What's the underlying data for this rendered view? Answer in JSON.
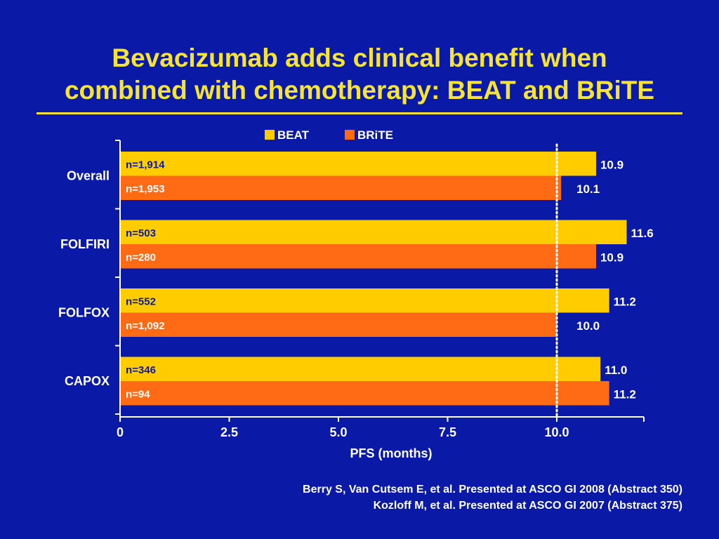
{
  "slide": {
    "title_line1": "Bevacizumab adds clinical benefit when",
    "title_line2": "combined with chemotherapy: BEAT and BRiTE",
    "citation_line1": "Berry S, Van Cutsem E, et al. Presented at ASCO GI 2008 (Abstract 350)",
    "citation_line2": "Kozloff M, et al. Presented at ASCO GI 2007 (Abstract 375)"
  },
  "colors": {
    "background": "#0a1aa6",
    "title": "#f5e33a",
    "beat": "#ffcc00",
    "brite": "#ff6a14",
    "text": "#ffffff",
    "n_label_beat": "#0a1aa6",
    "n_label_brite": "#ffffff"
  },
  "chart_data": {
    "type": "bar",
    "orientation": "horizontal",
    "categories": [
      "Overall",
      "FOLFIRI",
      "FOLFOX",
      "CAPOX"
    ],
    "series": [
      {
        "name": "BEAT",
        "values": [
          10.9,
          11.6,
          11.2,
          11.0
        ],
        "n_labels": [
          "n=1,914",
          "n=503",
          "n=552",
          "n=346"
        ]
      },
      {
        "name": "BRiTE",
        "values": [
          10.1,
          10.9,
          10.0,
          11.2
        ],
        "n_labels": [
          "n=1,953",
          "n=280",
          "n=1,092",
          "n=94"
        ]
      }
    ],
    "value_labels": [
      [
        "10.9",
        "11.6",
        "11.2",
        "11.0"
      ],
      [
        "10.1",
        "10.9",
        "10.0",
        "11.2"
      ]
    ],
    "xlabel": "PFS (months)",
    "xlim": [
      0,
      12
    ],
    "xticks": [
      0,
      2.5,
      5.0,
      7.5,
      10.0
    ],
    "xtick_labels": [
      "0",
      "2.5",
      "5.0",
      "7.5",
      "10.0"
    ],
    "reference_line": 10.0,
    "legend_position": "top-center",
    "grid": false
  }
}
